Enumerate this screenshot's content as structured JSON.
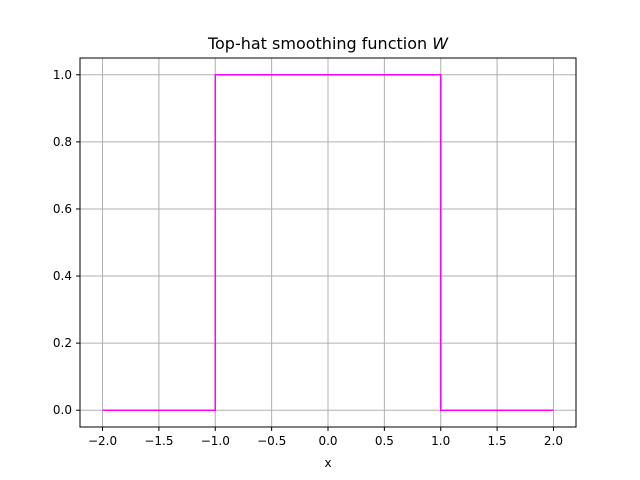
{
  "chart_data": {
    "type": "line",
    "title": "Top-hat smoothing function",
    "title_symbol": "W",
    "xlabel": "x",
    "ylabel": "",
    "xlim": [
      -2.2,
      2.2
    ],
    "ylim": [
      -0.05,
      1.05
    ],
    "grid": true,
    "x_ticks": [
      -2.0,
      -1.5,
      -1.0,
      -0.5,
      0.0,
      0.5,
      1.0,
      1.5,
      2.0
    ],
    "x_tick_labels": [
      "−2.0",
      "−1.5",
      "−1.0",
      "−0.5",
      "0.0",
      "0.5",
      "1.0",
      "1.5",
      "2.0"
    ],
    "y_ticks": [
      0.0,
      0.2,
      0.4,
      0.6,
      0.8,
      1.0
    ],
    "y_tick_labels": [
      "0.0",
      "0.2",
      "0.4",
      "0.6",
      "0.8",
      "1.0"
    ],
    "series": [
      {
        "color": "#ff00ff",
        "x": [
          -2.0,
          -1.0,
          -1.0,
          1.0,
          1.0,
          2.0
        ],
        "y": [
          0.0,
          0.0,
          1.0,
          1.0,
          0.0,
          0.0
        ]
      }
    ]
  }
}
